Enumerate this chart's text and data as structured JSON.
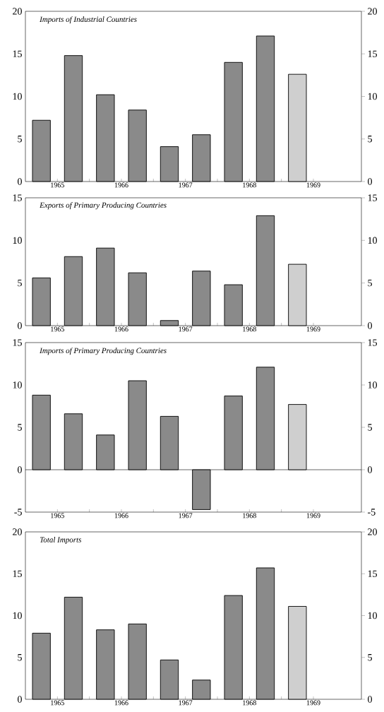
{
  "chart_data": [
    {
      "type": "bar",
      "title": "Imports of Industrial Countries",
      "x": [
        1965.25,
        1965.75,
        1966.25,
        1966.75,
        1967.25,
        1967.75,
        1968.25,
        1968.75,
        1969.25
      ],
      "values": [
        7.2,
        14.8,
        10.2,
        8.4,
        4.1,
        5.5,
        14.0,
        17.1,
        12.6
      ],
      "colors": [
        "#8a8a8a",
        "#8a8a8a",
        "#8a8a8a",
        "#8a8a8a",
        "#8a8a8a",
        "#8a8a8a",
        "#8a8a8a",
        "#8a8a8a",
        "#cfcfcf"
      ],
      "xlim": [
        1965,
        1970.25
      ],
      "xticks": [
        {
          "value": 1965.5,
          "label": "1965"
        },
        {
          "value": 1966,
          "label": null
        },
        {
          "value": 1966.5,
          "label": "1966"
        },
        {
          "value": 1967,
          "label": null
        },
        {
          "value": 1967.5,
          "label": "1967"
        },
        {
          "value": 1968,
          "label": null
        },
        {
          "value": 1968.5,
          "label": "1968"
        },
        {
          "value": 1969,
          "label": null
        },
        {
          "value": 1969.5,
          "label": "1969"
        }
      ],
      "ylim": [
        0,
        20
      ],
      "yticks": [
        0,
        5,
        10,
        15,
        20
      ],
      "y2lim": [
        0,
        20
      ],
      "y2ticks": [
        0,
        5,
        10,
        15,
        20
      ]
    },
    {
      "type": "bar",
      "title": "Exports of Primary Producing Countries",
      "x": [
        1965.25,
        1965.75,
        1966.25,
        1966.75,
        1967.25,
        1967.75,
        1968.25,
        1968.75,
        1969.25
      ],
      "values": [
        5.6,
        8.1,
        9.1,
        6.2,
        0.6,
        6.4,
        4.8,
        12.9,
        7.2
      ],
      "colors": [
        "#8a8a8a",
        "#8a8a8a",
        "#8a8a8a",
        "#8a8a8a",
        "#8a8a8a",
        "#8a8a8a",
        "#8a8a8a",
        "#8a8a8a",
        "#cfcfcf"
      ],
      "xlim": [
        1965,
        1970.25
      ],
      "xticks": [
        {
          "value": 1965.5,
          "label": "1965"
        },
        {
          "value": 1966,
          "label": null
        },
        {
          "value": 1966.5,
          "label": "1966"
        },
        {
          "value": 1967,
          "label": null
        },
        {
          "value": 1967.5,
          "label": "1967"
        },
        {
          "value": 1968,
          "label": null
        },
        {
          "value": 1968.5,
          "label": "1968"
        },
        {
          "value": 1969,
          "label": null
        },
        {
          "value": 1969.5,
          "label": "1969"
        }
      ],
      "ylim": [
        0,
        15
      ],
      "yticks": [
        0,
        5,
        10,
        15
      ],
      "y2lim": [
        0,
        15
      ],
      "y2ticks": [
        0,
        5,
        10,
        15
      ]
    },
    {
      "type": "bar",
      "title": "Imports of Primary Producing Countries",
      "x": [
        1965.25,
        1965.75,
        1966.25,
        1966.75,
        1967.25,
        1967.75,
        1968.25,
        1968.75,
        1969.25
      ],
      "values": [
        8.8,
        6.6,
        4.1,
        10.5,
        6.3,
        -4.7,
        8.7,
        12.1,
        7.7
      ],
      "colors": [
        "#8a8a8a",
        "#8a8a8a",
        "#8a8a8a",
        "#8a8a8a",
        "#8a8a8a",
        "#8a8a8a",
        "#8a8a8a",
        "#8a8a8a",
        "#cfcfcf"
      ],
      "xlim": [
        1965,
        1970.25
      ],
      "xticks": [
        {
          "value": 1965.5,
          "label": "1965"
        },
        {
          "value": 1966,
          "label": null
        },
        {
          "value": 1966.5,
          "label": "1966"
        },
        {
          "value": 1967,
          "label": null
        },
        {
          "value": 1967.5,
          "label": "1967"
        },
        {
          "value": 1968,
          "label": null
        },
        {
          "value": 1968.5,
          "label": "1968"
        },
        {
          "value": 1969,
          "label": null
        },
        {
          "value": 1969.5,
          "label": "1969"
        }
      ],
      "ylim": [
        -5,
        15
      ],
      "yticks": [
        {
          "value": -5,
          "label": "-5"
        },
        0,
        5,
        10,
        15
      ],
      "y2lim": [
        -5,
        15
      ],
      "y2ticks": [
        {
          "value": -5,
          "label": "-5"
        },
        0,
        5,
        10,
        15
      ]
    },
    {
      "type": "bar",
      "title": "Total Imports",
      "x": [
        1965.25,
        1965.75,
        1966.25,
        1966.75,
        1967.25,
        1967.75,
        1968.25,
        1968.75,
        1969.25
      ],
      "values": [
        7.9,
        12.2,
        8.3,
        9.0,
        4.7,
        2.3,
        12.4,
        15.7,
        11.1
      ],
      "colors": [
        "#8a8a8a",
        "#8a8a8a",
        "#8a8a8a",
        "#8a8a8a",
        "#8a8a8a",
        "#8a8a8a",
        "#8a8a8a",
        "#8a8a8a",
        "#cfcfcf"
      ],
      "xlim": [
        1965,
        1970.25
      ],
      "xticks": [
        {
          "value": 1965.5,
          "label": "1965"
        },
        {
          "value": 1966,
          "label": null
        },
        {
          "value": 1966.5,
          "label": "1966"
        },
        {
          "value": 1967,
          "label": null
        },
        {
          "value": 1967.5,
          "label": "1967"
        },
        {
          "value": 1968,
          "label": null
        },
        {
          "value": 1968.5,
          "label": "1968"
        },
        {
          "value": 1969,
          "label": null
        },
        {
          "value": 1969.5,
          "label": "1969"
        }
      ],
      "ylim": [
        0,
        20
      ],
      "yticks": [
        0,
        5,
        10,
        15,
        20
      ],
      "y2lim": [
        0,
        20
      ],
      "y2ticks": [
        0,
        5,
        10,
        15,
        20
      ]
    }
  ]
}
